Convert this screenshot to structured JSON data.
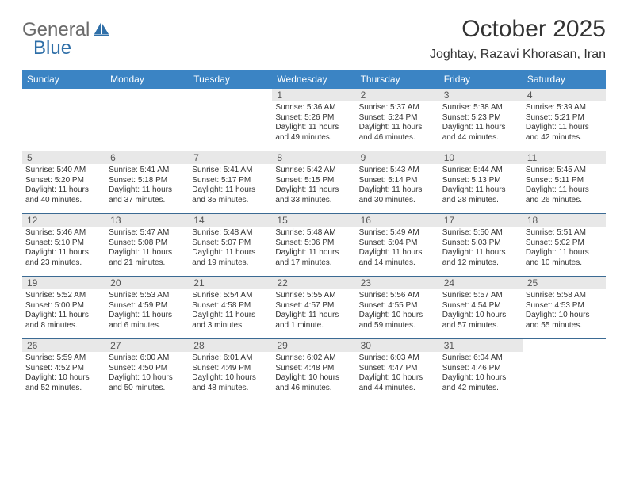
{
  "logo": {
    "part1": "General",
    "part2": "Blue"
  },
  "title": "October 2025",
  "location": "Joghtay, Razavi Khorasan, Iran",
  "colors": {
    "header_bg": "#3b84c4",
    "header_text": "#ffffff",
    "daynum_bg": "#e8e8e8",
    "row_border": "#3b6a93",
    "logo_gray": "#6a6a6a",
    "logo_blue": "#2f6fa8"
  },
  "day_names": [
    "Sunday",
    "Monday",
    "Tuesday",
    "Wednesday",
    "Thursday",
    "Friday",
    "Saturday"
  ],
  "weeks": [
    [
      {
        "n": "",
        "sr": "",
        "ss": "",
        "dl": ""
      },
      {
        "n": "",
        "sr": "",
        "ss": "",
        "dl": ""
      },
      {
        "n": "",
        "sr": "",
        "ss": "",
        "dl": ""
      },
      {
        "n": "1",
        "sr": "Sunrise: 5:36 AM",
        "ss": "Sunset: 5:26 PM",
        "dl": "Daylight: 11 hours and 49 minutes."
      },
      {
        "n": "2",
        "sr": "Sunrise: 5:37 AM",
        "ss": "Sunset: 5:24 PM",
        "dl": "Daylight: 11 hours and 46 minutes."
      },
      {
        "n": "3",
        "sr": "Sunrise: 5:38 AM",
        "ss": "Sunset: 5:23 PM",
        "dl": "Daylight: 11 hours and 44 minutes."
      },
      {
        "n": "4",
        "sr": "Sunrise: 5:39 AM",
        "ss": "Sunset: 5:21 PM",
        "dl": "Daylight: 11 hours and 42 minutes."
      }
    ],
    [
      {
        "n": "5",
        "sr": "Sunrise: 5:40 AM",
        "ss": "Sunset: 5:20 PM",
        "dl": "Daylight: 11 hours and 40 minutes."
      },
      {
        "n": "6",
        "sr": "Sunrise: 5:41 AM",
        "ss": "Sunset: 5:18 PM",
        "dl": "Daylight: 11 hours and 37 minutes."
      },
      {
        "n": "7",
        "sr": "Sunrise: 5:41 AM",
        "ss": "Sunset: 5:17 PM",
        "dl": "Daylight: 11 hours and 35 minutes."
      },
      {
        "n": "8",
        "sr": "Sunrise: 5:42 AM",
        "ss": "Sunset: 5:15 PM",
        "dl": "Daylight: 11 hours and 33 minutes."
      },
      {
        "n": "9",
        "sr": "Sunrise: 5:43 AM",
        "ss": "Sunset: 5:14 PM",
        "dl": "Daylight: 11 hours and 30 minutes."
      },
      {
        "n": "10",
        "sr": "Sunrise: 5:44 AM",
        "ss": "Sunset: 5:13 PM",
        "dl": "Daylight: 11 hours and 28 minutes."
      },
      {
        "n": "11",
        "sr": "Sunrise: 5:45 AM",
        "ss": "Sunset: 5:11 PM",
        "dl": "Daylight: 11 hours and 26 minutes."
      }
    ],
    [
      {
        "n": "12",
        "sr": "Sunrise: 5:46 AM",
        "ss": "Sunset: 5:10 PM",
        "dl": "Daylight: 11 hours and 23 minutes."
      },
      {
        "n": "13",
        "sr": "Sunrise: 5:47 AM",
        "ss": "Sunset: 5:08 PM",
        "dl": "Daylight: 11 hours and 21 minutes."
      },
      {
        "n": "14",
        "sr": "Sunrise: 5:48 AM",
        "ss": "Sunset: 5:07 PM",
        "dl": "Daylight: 11 hours and 19 minutes."
      },
      {
        "n": "15",
        "sr": "Sunrise: 5:48 AM",
        "ss": "Sunset: 5:06 PM",
        "dl": "Daylight: 11 hours and 17 minutes."
      },
      {
        "n": "16",
        "sr": "Sunrise: 5:49 AM",
        "ss": "Sunset: 5:04 PM",
        "dl": "Daylight: 11 hours and 14 minutes."
      },
      {
        "n": "17",
        "sr": "Sunrise: 5:50 AM",
        "ss": "Sunset: 5:03 PM",
        "dl": "Daylight: 11 hours and 12 minutes."
      },
      {
        "n": "18",
        "sr": "Sunrise: 5:51 AM",
        "ss": "Sunset: 5:02 PM",
        "dl": "Daylight: 11 hours and 10 minutes."
      }
    ],
    [
      {
        "n": "19",
        "sr": "Sunrise: 5:52 AM",
        "ss": "Sunset: 5:00 PM",
        "dl": "Daylight: 11 hours and 8 minutes."
      },
      {
        "n": "20",
        "sr": "Sunrise: 5:53 AM",
        "ss": "Sunset: 4:59 PM",
        "dl": "Daylight: 11 hours and 6 minutes."
      },
      {
        "n": "21",
        "sr": "Sunrise: 5:54 AM",
        "ss": "Sunset: 4:58 PM",
        "dl": "Daylight: 11 hours and 3 minutes."
      },
      {
        "n": "22",
        "sr": "Sunrise: 5:55 AM",
        "ss": "Sunset: 4:57 PM",
        "dl": "Daylight: 11 hours and 1 minute."
      },
      {
        "n": "23",
        "sr": "Sunrise: 5:56 AM",
        "ss": "Sunset: 4:55 PM",
        "dl": "Daylight: 10 hours and 59 minutes."
      },
      {
        "n": "24",
        "sr": "Sunrise: 5:57 AM",
        "ss": "Sunset: 4:54 PM",
        "dl": "Daylight: 10 hours and 57 minutes."
      },
      {
        "n": "25",
        "sr": "Sunrise: 5:58 AM",
        "ss": "Sunset: 4:53 PM",
        "dl": "Daylight: 10 hours and 55 minutes."
      }
    ],
    [
      {
        "n": "26",
        "sr": "Sunrise: 5:59 AM",
        "ss": "Sunset: 4:52 PM",
        "dl": "Daylight: 10 hours and 52 minutes."
      },
      {
        "n": "27",
        "sr": "Sunrise: 6:00 AM",
        "ss": "Sunset: 4:50 PM",
        "dl": "Daylight: 10 hours and 50 minutes."
      },
      {
        "n": "28",
        "sr": "Sunrise: 6:01 AM",
        "ss": "Sunset: 4:49 PM",
        "dl": "Daylight: 10 hours and 48 minutes."
      },
      {
        "n": "29",
        "sr": "Sunrise: 6:02 AM",
        "ss": "Sunset: 4:48 PM",
        "dl": "Daylight: 10 hours and 46 minutes."
      },
      {
        "n": "30",
        "sr": "Sunrise: 6:03 AM",
        "ss": "Sunset: 4:47 PM",
        "dl": "Daylight: 10 hours and 44 minutes."
      },
      {
        "n": "31",
        "sr": "Sunrise: 6:04 AM",
        "ss": "Sunset: 4:46 PM",
        "dl": "Daylight: 10 hours and 42 minutes."
      },
      {
        "n": "",
        "sr": "",
        "ss": "",
        "dl": ""
      }
    ]
  ]
}
